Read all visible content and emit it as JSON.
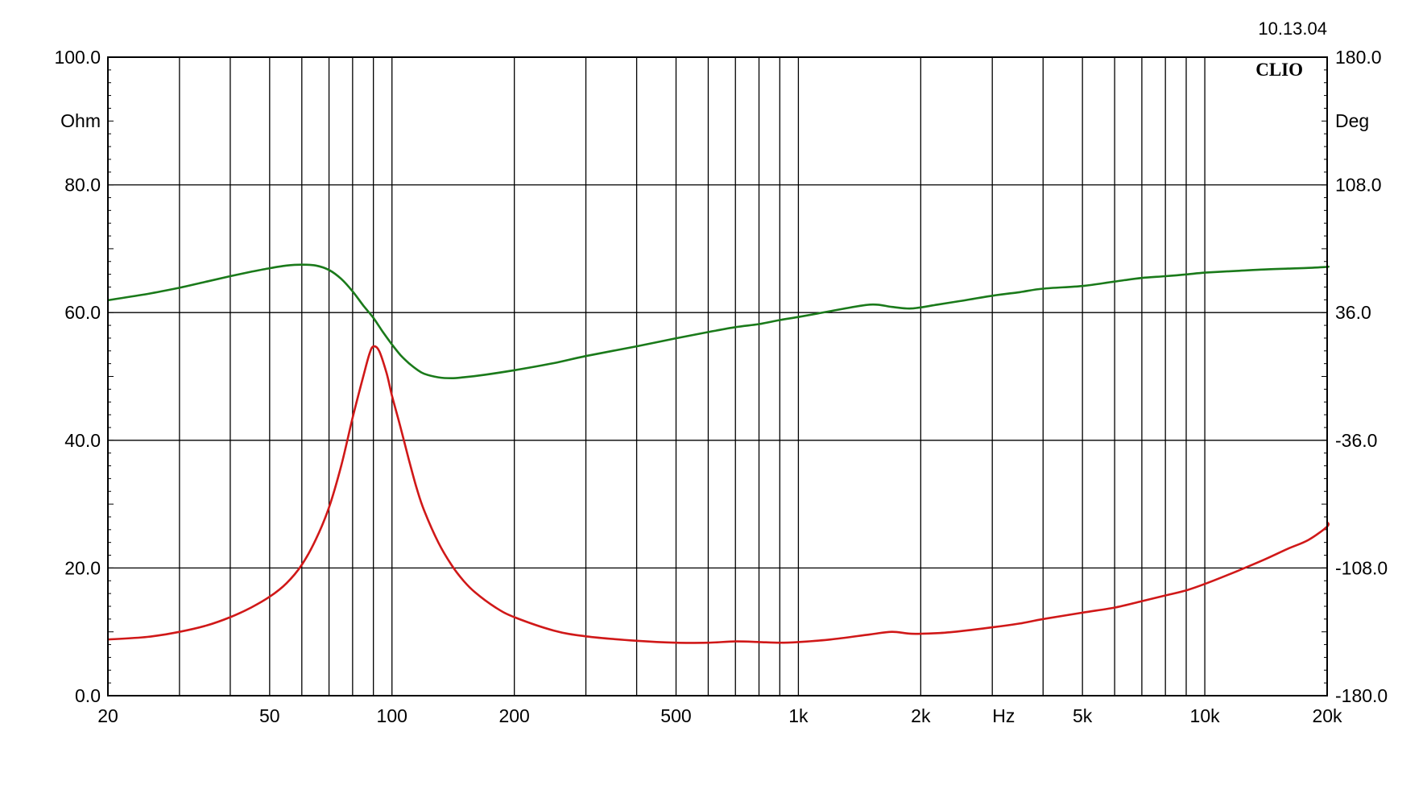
{
  "chart_data": {
    "type": "line",
    "stamp": "10.13.04",
    "brand": "CLIO",
    "x_scale": "log",
    "xlim": [
      20,
      20000
    ],
    "x_ticks": [
      {
        "value": 20,
        "label": "20"
      },
      {
        "value": 50,
        "label": "50"
      },
      {
        "value": 100,
        "label": "100"
      },
      {
        "value": 200,
        "label": "200"
      },
      {
        "value": 500,
        "label": "500"
      },
      {
        "value": 1000,
        "label": "1k"
      },
      {
        "value": 2000,
        "label": "2k"
      },
      {
        "value": 5000,
        "label": "5k"
      },
      {
        "value": 10000,
        "label": "10k"
      },
      {
        "value": 20000,
        "label": "20k"
      }
    ],
    "x_unit_label": "Hz",
    "x_unit_position": 3200,
    "x_grid": [
      20,
      30,
      40,
      50,
      60,
      70,
      80,
      90,
      100,
      200,
      300,
      400,
      500,
      600,
      700,
      800,
      900,
      1000,
      2000,
      3000,
      4000,
      5000,
      6000,
      7000,
      8000,
      9000,
      10000,
      20000
    ],
    "y_left": {
      "label": "Ohm",
      "ylim": [
        0,
        100
      ],
      "ticks": [
        "0.0",
        "20.0",
        "40.0",
        "60.0",
        "80.0",
        "100.0"
      ]
    },
    "y_right": {
      "label": "Deg",
      "ylim": [
        -180,
        180
      ],
      "ticks": [
        "-180.0",
        "-108.0",
        "-36.0",
        "36.0",
        "108.0",
        "180.0"
      ]
    },
    "grid": true,
    "series": [
      {
        "color": "#d01818",
        "axis": "left",
        "points": [
          [
            20,
            8.8
          ],
          [
            25,
            9.2
          ],
          [
            30,
            10.0
          ],
          [
            35,
            11.0
          ],
          [
            40,
            12.3
          ],
          [
            45,
            13.8
          ],
          [
            50,
            15.5
          ],
          [
            55,
            17.6
          ],
          [
            60,
            20.5
          ],
          [
            65,
            24.5
          ],
          [
            70,
            29.5
          ],
          [
            75,
            36.0
          ],
          [
            80,
            43.5
          ],
          [
            85,
            50.0
          ],
          [
            88,
            53.5
          ],
          [
            90,
            54.7
          ],
          [
            93,
            54.0
          ],
          [
            97,
            50.5
          ],
          [
            100,
            47.0
          ],
          [
            105,
            42.0
          ],
          [
            110,
            37.0
          ],
          [
            115,
            32.5
          ],
          [
            120,
            29.0
          ],
          [
            130,
            24.0
          ],
          [
            140,
            20.5
          ],
          [
            150,
            18.0
          ],
          [
            160,
            16.2
          ],
          [
            180,
            13.8
          ],
          [
            200,
            12.3
          ],
          [
            250,
            10.2
          ],
          [
            300,
            9.3
          ],
          [
            400,
            8.6
          ],
          [
            500,
            8.3
          ],
          [
            600,
            8.3
          ],
          [
            700,
            8.5
          ],
          [
            800,
            8.4
          ],
          [
            900,
            8.3
          ],
          [
            1000,
            8.4
          ],
          [
            1200,
            8.8
          ],
          [
            1500,
            9.6
          ],
          [
            1700,
            10.0
          ],
          [
            1900,
            9.7
          ],
          [
            2200,
            9.8
          ],
          [
            2500,
            10.1
          ],
          [
            3000,
            10.7
          ],
          [
            3500,
            11.3
          ],
          [
            4000,
            12.0
          ],
          [
            5000,
            13.0
          ],
          [
            6000,
            13.8
          ],
          [
            7000,
            14.8
          ],
          [
            8000,
            15.7
          ],
          [
            9000,
            16.5
          ],
          [
            10000,
            17.5
          ],
          [
            12000,
            19.5
          ],
          [
            14000,
            21.3
          ],
          [
            16000,
            23.0
          ],
          [
            18000,
            24.4
          ],
          [
            20000,
            26.5
          ],
          [
            21000,
            27.2
          ]
        ]
      },
      {
        "color": "#1a7a1a",
        "axis": "right",
        "points": [
          [
            20,
            43.0
          ],
          [
            25,
            46.5
          ],
          [
            30,
            50.0
          ],
          [
            35,
            53.5
          ],
          [
            40,
            56.5
          ],
          [
            45,
            59.0
          ],
          [
            50,
            61.0
          ],
          [
            55,
            62.5
          ],
          [
            60,
            63.0
          ],
          [
            65,
            62.5
          ],
          [
            70,
            60.0
          ],
          [
            75,
            55.0
          ],
          [
            80,
            48.0
          ],
          [
            85,
            40.0
          ],
          [
            90,
            33.0
          ],
          [
            95,
            25.0
          ],
          [
            100,
            18.0
          ],
          [
            105,
            12.0
          ],
          [
            110,
            7.5
          ],
          [
            115,
            4.0
          ],
          [
            120,
            1.5
          ],
          [
            130,
            -0.5
          ],
          [
            140,
            -1.0
          ],
          [
            150,
            -0.5
          ],
          [
            170,
            1.0
          ],
          [
            200,
            3.5
          ],
          [
            250,
            7.5
          ],
          [
            300,
            11.5
          ],
          [
            400,
            17.0
          ],
          [
            500,
            21.5
          ],
          [
            600,
            25.0
          ],
          [
            700,
            27.8
          ],
          [
            800,
            29.5
          ],
          [
            900,
            31.8
          ],
          [
            1000,
            33.5
          ],
          [
            1200,
            36.8
          ],
          [
            1500,
            40.5
          ],
          [
            1700,
            39.2
          ],
          [
            1900,
            38.3
          ],
          [
            2200,
            40.5
          ],
          [
            2500,
            42.5
          ],
          [
            3000,
            45.5
          ],
          [
            3500,
            47.5
          ],
          [
            4000,
            49.5
          ],
          [
            5000,
            51.0
          ],
          [
            6000,
            53.5
          ],
          [
            7000,
            55.5
          ],
          [
            8000,
            56.5
          ],
          [
            9000,
            57.5
          ],
          [
            10000,
            58.5
          ],
          [
            12000,
            59.5
          ],
          [
            14000,
            60.3
          ],
          [
            16000,
            60.8
          ],
          [
            18000,
            61.2
          ],
          [
            20000,
            61.8
          ],
          [
            21000,
            62.0
          ]
        ]
      }
    ]
  }
}
